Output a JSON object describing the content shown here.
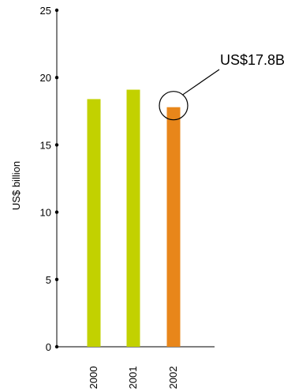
{
  "chart_data": {
    "type": "bar",
    "ylabel": "US$ billion",
    "xlabel": "",
    "ylim": [
      0,
      25
    ],
    "yticks": [
      0,
      5,
      10,
      15,
      20,
      25
    ],
    "categories": [
      "2000",
      "2001",
      "2002"
    ],
    "values": [
      18.4,
      19.1,
      17.8
    ],
    "bar_colors": [
      "#c2d100",
      "#c2d100",
      "#e8861a"
    ],
    "annotation": {
      "text": "US$17.8B",
      "category": "2002",
      "value": 17.8
    },
    "grid": false
  }
}
